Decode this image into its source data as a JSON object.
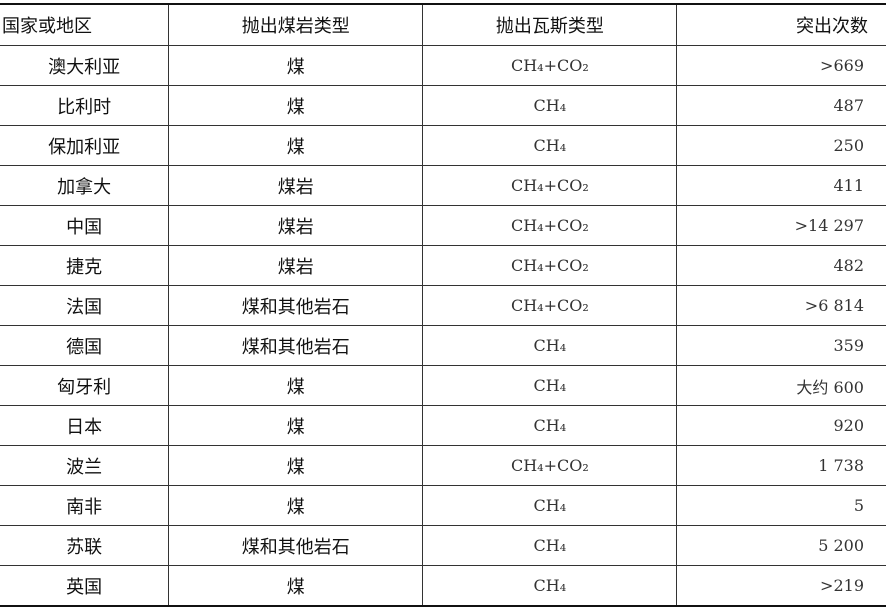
{
  "headers": [
    "国家或地区",
    "抛出煤岩类型",
    "抛出瓦斯类型",
    "突出次数"
  ],
  "rows": [
    {
      "country": "澳大利亚",
      "rock": "煤",
      "gas": "CH₄+CO₂",
      "count": ">669"
    },
    {
      "country": "比利时",
      "rock": "煤",
      "gas": "CH₄",
      "count": "487"
    },
    {
      "country": "保加利亚",
      "rock": "煤",
      "gas": "CH₄",
      "count": "250"
    },
    {
      "country": "加拿大",
      "rock": "煤岩",
      "gas": "CH₄+CO₂",
      "count": "411"
    },
    {
      "country": "中国",
      "rock": "煤岩",
      "gas": "CH₄+CO₂",
      "count": ">14 297"
    },
    {
      "country": "捷克",
      "rock": "煤岩",
      "gas": "CH₄+CO₂",
      "count": "482"
    },
    {
      "country": "法国",
      "rock": "煤和其他岩石",
      "gas": "CH₄+CO₂",
      "count": ">6 814"
    },
    {
      "country": "德国",
      "rock": "煤和其他岩石",
      "gas": "CH₄",
      "count": "359"
    },
    {
      "country": "匈牙利",
      "rock": "煤",
      "gas": "CH₄",
      "count": "大约 600"
    },
    {
      "country": "日本",
      "rock": "煤",
      "gas": "CH₄",
      "count": "920"
    },
    {
      "country": "波兰",
      "rock": "煤",
      "gas": "CH₄+CO₂",
      "count": "1 738"
    },
    {
      "country": "南非",
      "rock": "煤",
      "gas": "CH₄",
      "count": "5"
    },
    {
      "country": "苏联",
      "rock": "煤和其他岩石",
      "gas": "CH₄",
      "count": "5 200"
    },
    {
      "country": "英国",
      "rock": "煤",
      "gas": "CH₄",
      "count": ">219"
    }
  ]
}
